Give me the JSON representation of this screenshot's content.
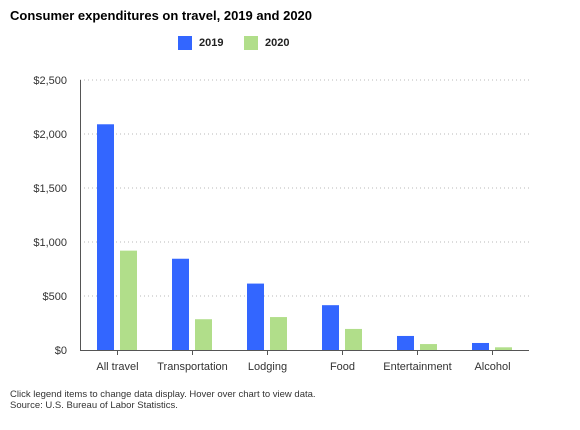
{
  "chart_data": {
    "type": "bar",
    "title": "Consumer expenditures on travel, 2019 and 2020",
    "categories": [
      "All travel",
      "Transportation",
      "Lodging",
      "Food",
      "Entertainment",
      "Alcohol"
    ],
    "series": [
      {
        "name": "2019",
        "color": "#3366ff",
        "values": [
          2090,
          845,
          615,
          415,
          130,
          65
        ]
      },
      {
        "name": "2020",
        "color": "#b1de8a",
        "values": [
          920,
          285,
          305,
          195,
          55,
          25
        ]
      }
    ],
    "ylim": [
      0,
      2500
    ],
    "yticks": [
      0,
      500,
      1000,
      1500,
      2000,
      2500
    ],
    "ytick_labels": [
      "$0",
      "$500",
      "$1,000",
      "$1,500",
      "$2,000",
      "$2,500"
    ],
    "grid": true,
    "legend_position": "top-center"
  },
  "footer": {
    "note": "Click legend items to change data display. Hover over chart to view data.",
    "source": "Source: U.S. Bureau of Labor Statistics."
  }
}
